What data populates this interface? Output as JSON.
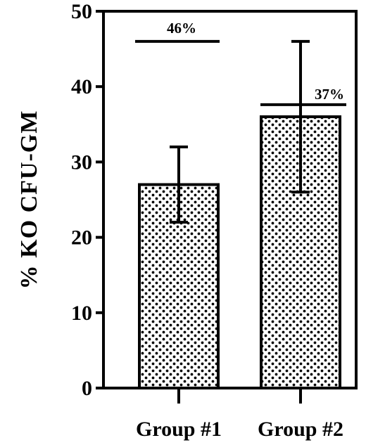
{
  "chart_data": {
    "type": "bar",
    "title": "",
    "xlabel": "",
    "ylabel": "% KO CFU-GM",
    "categories": [
      "Group #1",
      "Group #2"
    ],
    "values": [
      27,
      36
    ],
    "error_upper": [
      32,
      46
    ],
    "error_lower": [
      22,
      26
    ],
    "ylim": [
      0,
      50
    ],
    "yticks": [
      0,
      10,
      20,
      30,
      40,
      50
    ],
    "bar_fill": "dotted",
    "grid": false,
    "annotations": [
      {
        "label": "46%",
        "category": "Group #1",
        "y": 46
      },
      {
        "label": "37%",
        "category": "Group #2",
        "y": 37.6
      }
    ]
  }
}
